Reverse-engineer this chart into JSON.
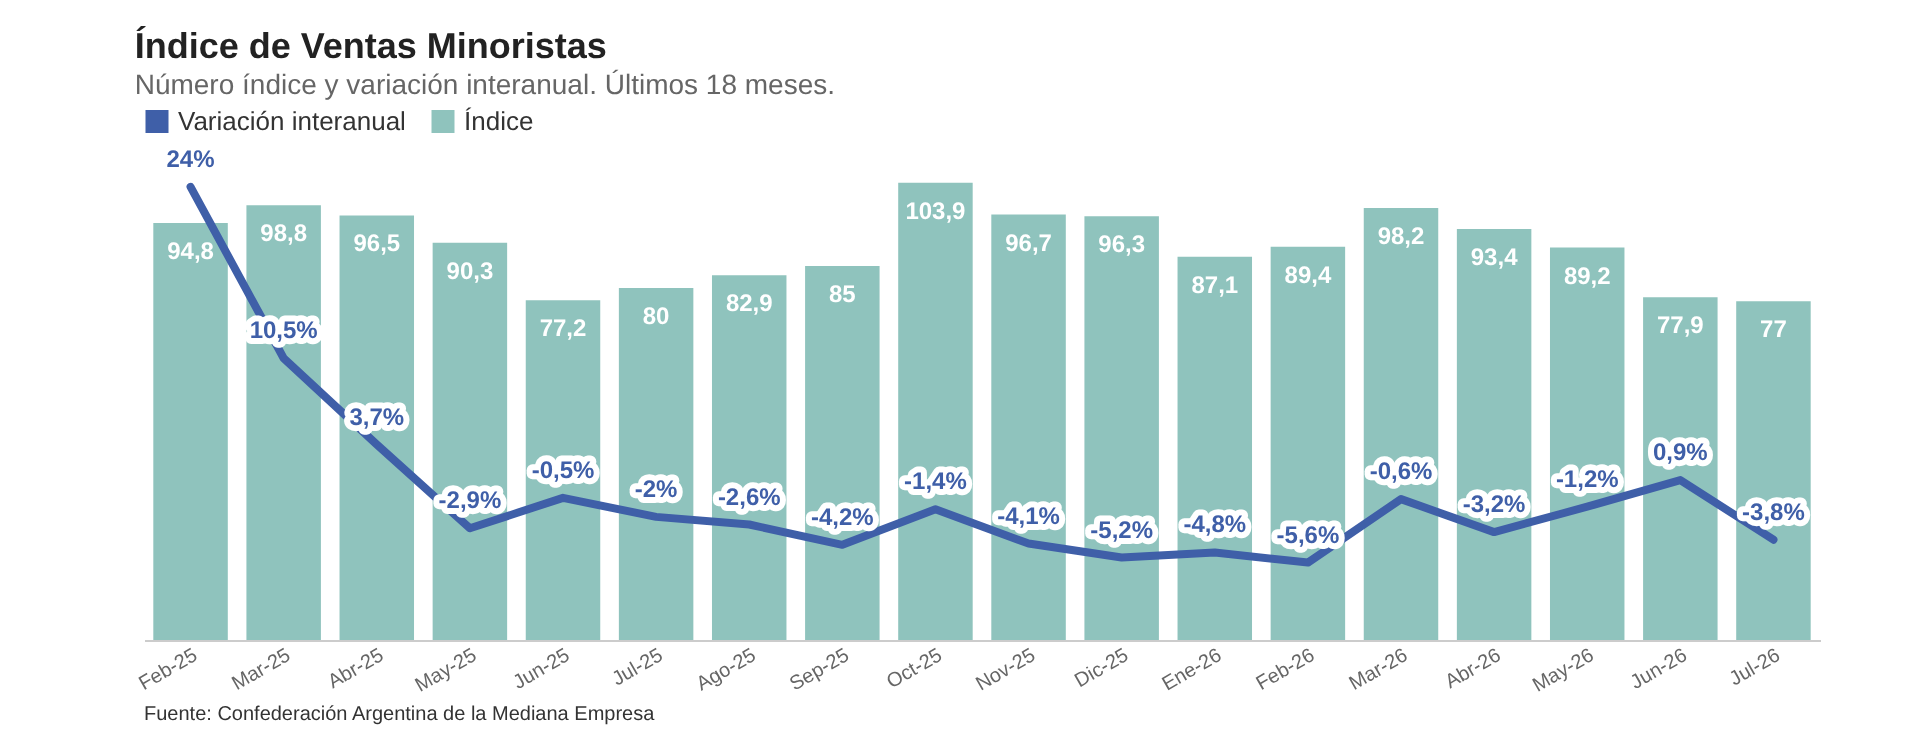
{
  "chart_data": {
    "type": "bar",
    "title": "Índice de Ventas Minoristas",
    "subtitle": "Número índice y variación interanual. Últimos 18 meses.",
    "categories": [
      "Feb-25",
      "Mar-25",
      "Abr-25",
      "May-25",
      "Jun-25",
      "Jul-25",
      "Ago-25",
      "Sep-25",
      "Oct-25",
      "Nov-25",
      "Dic-25",
      "Ene-26",
      "Feb-26",
      "Mar-26",
      "Abr-26",
      "May-26",
      "Jun-26",
      "Jul-26"
    ],
    "series": [
      {
        "name": "Variación interanual",
        "type": "line",
        "axis": "y2",
        "color": "#3f5fa8",
        "values": [
          24,
          10.5,
          3.7,
          -2.9,
          -0.5,
          -2,
          -2.6,
          -4.2,
          -1.4,
          -4.1,
          -5.2,
          -4.8,
          -5.6,
          -0.6,
          -3.2,
          -1.2,
          0.9,
          -3.8
        ],
        "value_labels": [
          "24%",
          "10,5%",
          "3,7%",
          "-2,9%",
          "-0,5%",
          "-2%",
          "-2,6%",
          "-4,2%",
          "-1,4%",
          "-4,1%",
          "-5,2%",
          "-4,8%",
          "-5,6%",
          "-0,6%",
          "-3,2%",
          "-1,2%",
          "0,9%",
          "-3,8%"
        ]
      },
      {
        "name": "Índice",
        "type": "bar",
        "color": "#8fc3bd",
        "values": [
          94.8,
          98.8,
          96.5,
          90.3,
          77.2,
          80,
          82.9,
          85,
          103.9,
          96.7,
          96.3,
          87.1,
          89.4,
          98.2,
          93.4,
          89.2,
          77.9,
          77
        ],
        "value_labels": [
          "94,8",
          "98,8",
          "96,5",
          "90,3",
          "77,2",
          "80",
          "82,9",
          "85",
          "103,9",
          "96,7",
          "96,3",
          "87,1",
          "89,4",
          "98,2",
          "93,4",
          "89,2",
          "77,9",
          "77"
        ]
      }
    ],
    "ylim": [
      0,
      105
    ],
    "y2lim": [
      -11.7,
      24.7
    ],
    "tick_labels": "x",
    "legend": "top left",
    "annotations": [
      "Fuente: Confederación Argentina de la Mediana Empresa"
    ]
  }
}
